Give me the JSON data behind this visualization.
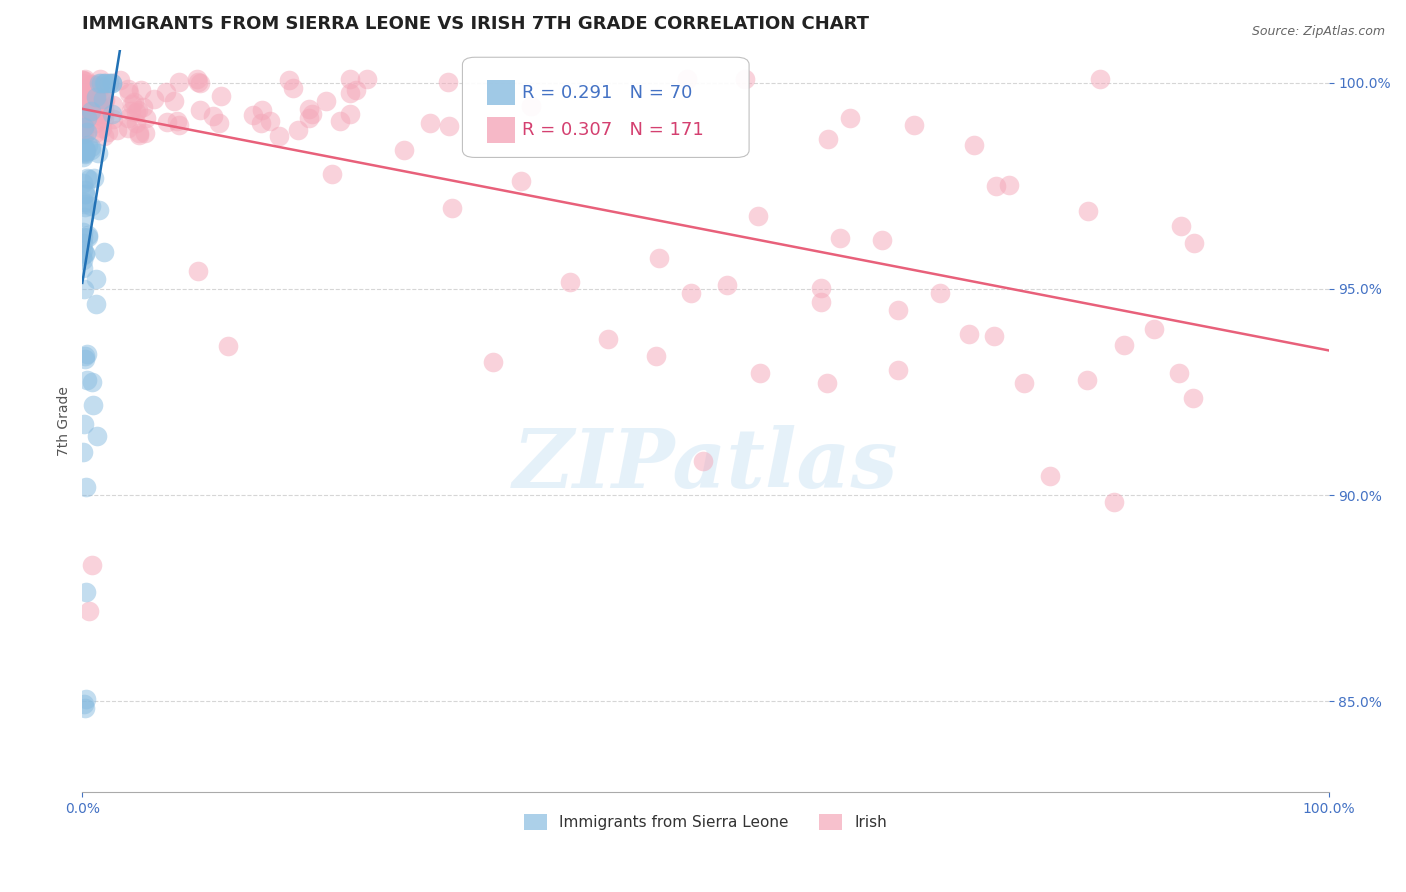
{
  "title": "IMMIGRANTS FROM SIERRA LEONE VS IRISH 7TH GRADE CORRELATION CHART",
  "source_text": "Source: ZipAtlas.com",
  "ylabel": "7th Grade",
  "x_min": 0.0,
  "x_max": 1.0,
  "y_min": 0.828,
  "y_max": 1.008,
  "yticks": [
    0.85,
    0.9,
    0.95,
    1.0
  ],
  "ytick_labels": [
    "85.0%",
    "90.0%",
    "95.0%",
    "100.0%"
  ],
  "xticks": [
    0.0,
    1.0
  ],
  "xtick_labels": [
    "0.0%",
    "100.0%"
  ],
  "legend_line1": "R = 0.291   N = 70",
  "legend_line2": "R = 0.307   N = 171",
  "legend_labels_bottom": [
    "Immigrants from Sierra Leone",
    "Irish"
  ],
  "blue_color": "#89bce0",
  "pink_color": "#f4a7b9",
  "blue_line_color": "#2171b5",
  "pink_line_color": "#e8607a",
  "watermark": "ZIPatlas",
  "background_color": "#ffffff",
  "grid_color": "#cccccc",
  "tick_label_color": "#4472c4",
  "title_fontsize": 13,
  "axis_label_fontsize": 10,
  "tick_fontsize": 10,
  "legend_text_blue_color": "#4472c4",
  "legend_text_pink_color": "#d44070"
}
